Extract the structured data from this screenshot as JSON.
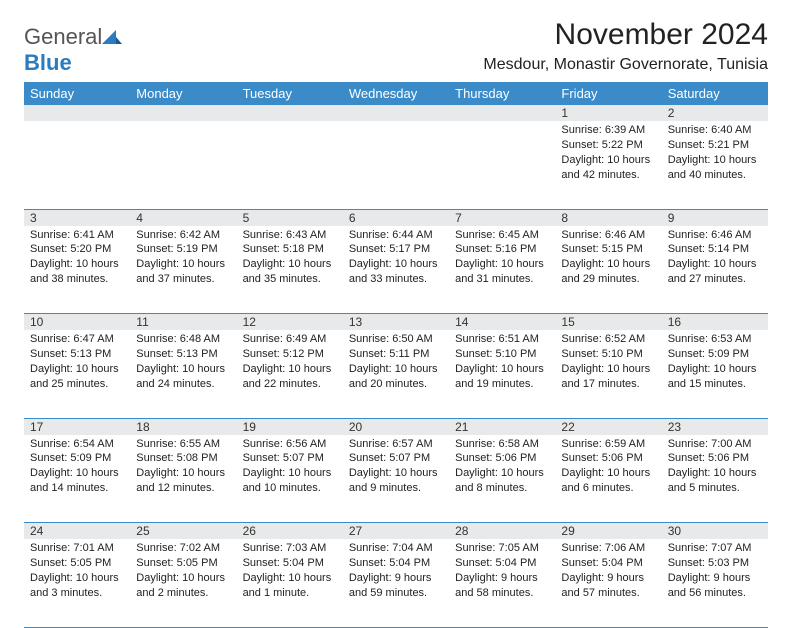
{
  "brand": {
    "name_part1": "General",
    "name_part2": "Blue"
  },
  "title": "November 2024",
  "location": "Mesdour, Monastir Governorate, Tunisia",
  "colors": {
    "header_bg": "#3b8bc9",
    "header_text": "#ffffff",
    "daynum_bg": "#e8e9ea",
    "cell_text": "#222222",
    "rule": "#3b8bc9",
    "logo_gray": "#555555",
    "logo_blue": "#2a7bbf"
  },
  "weekdays": [
    "Sunday",
    "Monday",
    "Tuesday",
    "Wednesday",
    "Thursday",
    "Friday",
    "Saturday"
  ],
  "weeks": [
    [
      null,
      null,
      null,
      null,
      null,
      {
        "n": "1",
        "sr": "Sunrise: 6:39 AM",
        "ss": "Sunset: 5:22 PM",
        "dl": "Daylight: 10 hours and 42 minutes."
      },
      {
        "n": "2",
        "sr": "Sunrise: 6:40 AM",
        "ss": "Sunset: 5:21 PM",
        "dl": "Daylight: 10 hours and 40 minutes."
      }
    ],
    [
      {
        "n": "3",
        "sr": "Sunrise: 6:41 AM",
        "ss": "Sunset: 5:20 PM",
        "dl": "Daylight: 10 hours and 38 minutes."
      },
      {
        "n": "4",
        "sr": "Sunrise: 6:42 AM",
        "ss": "Sunset: 5:19 PM",
        "dl": "Daylight: 10 hours and 37 minutes."
      },
      {
        "n": "5",
        "sr": "Sunrise: 6:43 AM",
        "ss": "Sunset: 5:18 PM",
        "dl": "Daylight: 10 hours and 35 minutes."
      },
      {
        "n": "6",
        "sr": "Sunrise: 6:44 AM",
        "ss": "Sunset: 5:17 PM",
        "dl": "Daylight: 10 hours and 33 minutes."
      },
      {
        "n": "7",
        "sr": "Sunrise: 6:45 AM",
        "ss": "Sunset: 5:16 PM",
        "dl": "Daylight: 10 hours and 31 minutes."
      },
      {
        "n": "8",
        "sr": "Sunrise: 6:46 AM",
        "ss": "Sunset: 5:15 PM",
        "dl": "Daylight: 10 hours and 29 minutes."
      },
      {
        "n": "9",
        "sr": "Sunrise: 6:46 AM",
        "ss": "Sunset: 5:14 PM",
        "dl": "Daylight: 10 hours and 27 minutes."
      }
    ],
    [
      {
        "n": "10",
        "sr": "Sunrise: 6:47 AM",
        "ss": "Sunset: 5:13 PM",
        "dl": "Daylight: 10 hours and 25 minutes."
      },
      {
        "n": "11",
        "sr": "Sunrise: 6:48 AM",
        "ss": "Sunset: 5:13 PM",
        "dl": "Daylight: 10 hours and 24 minutes."
      },
      {
        "n": "12",
        "sr": "Sunrise: 6:49 AM",
        "ss": "Sunset: 5:12 PM",
        "dl": "Daylight: 10 hours and 22 minutes."
      },
      {
        "n": "13",
        "sr": "Sunrise: 6:50 AM",
        "ss": "Sunset: 5:11 PM",
        "dl": "Daylight: 10 hours and 20 minutes."
      },
      {
        "n": "14",
        "sr": "Sunrise: 6:51 AM",
        "ss": "Sunset: 5:10 PM",
        "dl": "Daylight: 10 hours and 19 minutes."
      },
      {
        "n": "15",
        "sr": "Sunrise: 6:52 AM",
        "ss": "Sunset: 5:10 PM",
        "dl": "Daylight: 10 hours and 17 minutes."
      },
      {
        "n": "16",
        "sr": "Sunrise: 6:53 AM",
        "ss": "Sunset: 5:09 PM",
        "dl": "Daylight: 10 hours and 15 minutes."
      }
    ],
    [
      {
        "n": "17",
        "sr": "Sunrise: 6:54 AM",
        "ss": "Sunset: 5:09 PM",
        "dl": "Daylight: 10 hours and 14 minutes."
      },
      {
        "n": "18",
        "sr": "Sunrise: 6:55 AM",
        "ss": "Sunset: 5:08 PM",
        "dl": "Daylight: 10 hours and 12 minutes."
      },
      {
        "n": "19",
        "sr": "Sunrise: 6:56 AM",
        "ss": "Sunset: 5:07 PM",
        "dl": "Daylight: 10 hours and 10 minutes."
      },
      {
        "n": "20",
        "sr": "Sunrise: 6:57 AM",
        "ss": "Sunset: 5:07 PM",
        "dl": "Daylight: 10 hours and 9 minutes."
      },
      {
        "n": "21",
        "sr": "Sunrise: 6:58 AM",
        "ss": "Sunset: 5:06 PM",
        "dl": "Daylight: 10 hours and 8 minutes."
      },
      {
        "n": "22",
        "sr": "Sunrise: 6:59 AM",
        "ss": "Sunset: 5:06 PM",
        "dl": "Daylight: 10 hours and 6 minutes."
      },
      {
        "n": "23",
        "sr": "Sunrise: 7:00 AM",
        "ss": "Sunset: 5:06 PM",
        "dl": "Daylight: 10 hours and 5 minutes."
      }
    ],
    [
      {
        "n": "24",
        "sr": "Sunrise: 7:01 AM",
        "ss": "Sunset: 5:05 PM",
        "dl": "Daylight: 10 hours and 3 minutes."
      },
      {
        "n": "25",
        "sr": "Sunrise: 7:02 AM",
        "ss": "Sunset: 5:05 PM",
        "dl": "Daylight: 10 hours and 2 minutes."
      },
      {
        "n": "26",
        "sr": "Sunrise: 7:03 AM",
        "ss": "Sunset: 5:04 PM",
        "dl": "Daylight: 10 hours and 1 minute."
      },
      {
        "n": "27",
        "sr": "Sunrise: 7:04 AM",
        "ss": "Sunset: 5:04 PM",
        "dl": "Daylight: 9 hours and 59 minutes."
      },
      {
        "n": "28",
        "sr": "Sunrise: 7:05 AM",
        "ss": "Sunset: 5:04 PM",
        "dl": "Daylight: 9 hours and 58 minutes."
      },
      {
        "n": "29",
        "sr": "Sunrise: 7:06 AM",
        "ss": "Sunset: 5:04 PM",
        "dl": "Daylight: 9 hours and 57 minutes."
      },
      {
        "n": "30",
        "sr": "Sunrise: 7:07 AM",
        "ss": "Sunset: 5:03 PM",
        "dl": "Daylight: 9 hours and 56 minutes."
      }
    ]
  ]
}
